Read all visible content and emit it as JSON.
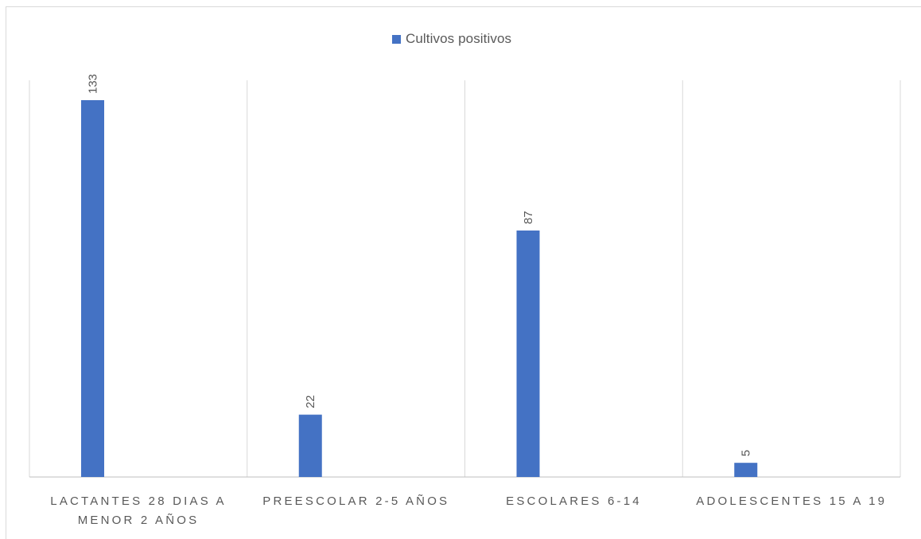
{
  "legend": {
    "label": "Cultivos positivos"
  },
  "colors": {
    "bar": "#4472C4",
    "gridline": "#d9d9d9",
    "axis": "#bfbfbf",
    "text": "#595959"
  },
  "chart_data": {
    "type": "bar",
    "title": "",
    "xlabel": "",
    "ylabel": "",
    "categories": [
      "LACTANTES 28 DIAS A MENOR 2 AÑOS",
      "PREESCOLAR 2-5 AÑOS",
      "ESCOLARES 6-14",
      "ADOLESCENTES 15 A 19"
    ],
    "series": [
      {
        "name": "Cultivos positivos",
        "values": [
          133,
          22,
          87,
          5
        ]
      }
    ],
    "ylim": [
      0,
      133
    ],
    "grid": true,
    "legend_position": "top",
    "data_labels": true
  }
}
